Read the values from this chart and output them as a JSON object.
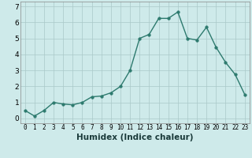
{
  "x": [
    0,
    1,
    2,
    3,
    4,
    5,
    6,
    7,
    8,
    9,
    10,
    11,
    12,
    13,
    14,
    15,
    16,
    17,
    18,
    19,
    20,
    21,
    22,
    23
  ],
  "y": [
    0.5,
    0.15,
    0.5,
    1.0,
    0.9,
    0.85,
    1.0,
    1.35,
    1.4,
    1.6,
    2.0,
    3.0,
    5.0,
    5.25,
    6.25,
    6.25,
    6.65,
    5.0,
    4.9,
    5.7,
    4.45,
    3.5,
    2.75,
    1.5
  ],
  "xlabel": "Humidex (Indice chaleur)",
  "xlim": [
    -0.5,
    23.5
  ],
  "ylim": [
    -0.3,
    7.3
  ],
  "yticks": [
    0,
    1,
    2,
    3,
    4,
    5,
    6,
    7
  ],
  "xticks": [
    0,
    1,
    2,
    3,
    4,
    5,
    6,
    7,
    8,
    9,
    10,
    11,
    12,
    13,
    14,
    15,
    16,
    17,
    18,
    19,
    20,
    21,
    22,
    23
  ],
  "line_color": "#2d7a6e",
  "bg_color": "#ceeaea",
  "grid_color": "#aac8c8",
  "marker_size": 2.5,
  "line_width": 1.0,
  "xlabel_fontsize": 7.5,
  "tick_fontsize": 5.5,
  "ytick_fontsize": 6.5
}
